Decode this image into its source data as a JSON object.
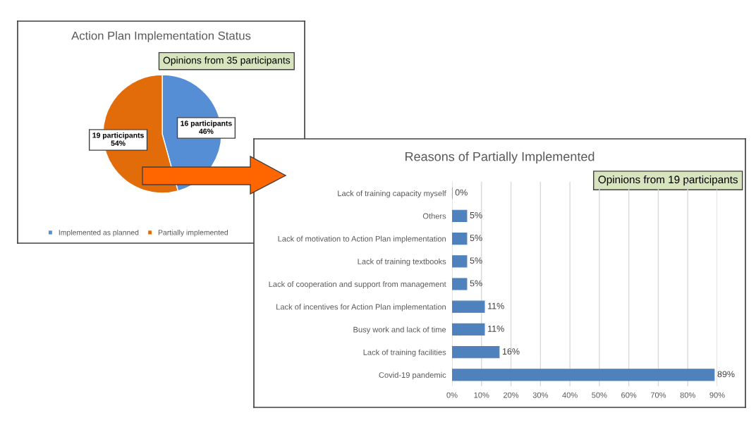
{
  "chart_data": [
    {
      "type": "pie",
      "title": "Action Plan Implementation Status",
      "categories": [
        "Implemented as planned",
        "Partially implemented"
      ],
      "values": [
        16,
        19
      ],
      "colors": [
        "#558ed5",
        "#e36c0a"
      ],
      "value_labels": [
        "16 participants\n46%",
        "19 participants\n54%"
      ],
      "legend": "bottom",
      "annotations": [
        "Opinions from 35 participants"
      ]
    },
    {
      "type": "bar",
      "orientation": "horizontal",
      "title": "Reasons of Partially Implemented",
      "categories": [
        "Lack of training capacity myself",
        "Others",
        "Lack of motivation to Action Plan implementation",
        "Lack of training textbooks",
        "Lack of cooperation and support from management",
        "Lack of incentives for Action Plan implementation",
        "Busy work and lack of time",
        "Lack of training facilities",
        "Covid-19 pandemic"
      ],
      "values": [
        0,
        5,
        5,
        5,
        5,
        11,
        11,
        16,
        89
      ],
      "value_labels": [
        "0%",
        "5%",
        "5%",
        "5%",
        "5%",
        "11%",
        "11%",
        "16%",
        "89%"
      ],
      "color": "#4f81bd",
      "xlim": [
        0,
        90
      ],
      "xticks": [
        {
          "value": 0,
          "label": "0%"
        },
        {
          "value": 10,
          "label": "10%"
        },
        {
          "value": 20,
          "label": "20%"
        },
        {
          "value": 30,
          "label": "30%"
        },
        {
          "value": 40,
          "label": "40%"
        },
        {
          "value": 50,
          "label": "50%"
        },
        {
          "value": 60,
          "label": "60%"
        },
        {
          "value": 70,
          "label": "70%"
        },
        {
          "value": 80,
          "label": "80%"
        },
        {
          "value": 90,
          "label": "90%"
        }
      ],
      "grid": "x",
      "legend": false,
      "annotations": [
        "Opinions from 19 participants"
      ]
    }
  ]
}
